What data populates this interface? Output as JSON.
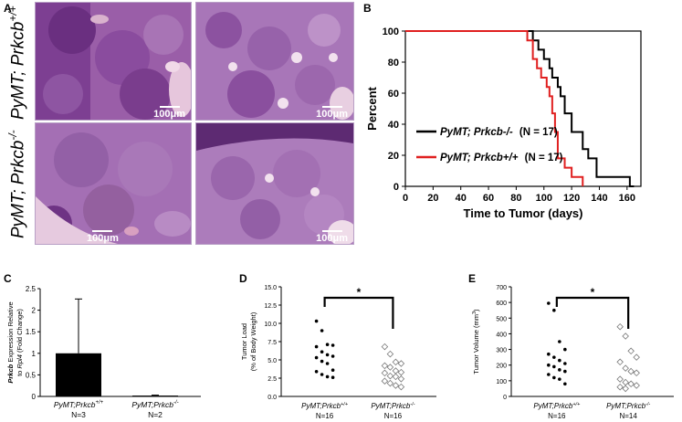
{
  "panels": {
    "A": {
      "letter": "A",
      "row1_label": "PyMT; Prkcb",
      "row1_sup": "+/+",
      "row2_label": "PyMT; Prkcb",
      "row2_sup": "-/-",
      "scale_label": "100μm"
    },
    "B": {
      "letter": "B"
    },
    "C": {
      "letter": "C"
    },
    "D": {
      "letter": "D"
    },
    "E": {
      "letter": "E"
    }
  },
  "chart_data": [
    {
      "id": "B",
      "type": "line",
      "subtype": "kaplan-meier step",
      "xlabel": "Time to Tumor (days)",
      "ylabel": "Percent",
      "xlim": [
        0,
        170
      ],
      "ylim": [
        0,
        100
      ],
      "xticks": [
        0,
        20,
        40,
        60,
        80,
        100,
        120,
        140,
        160
      ],
      "yticks": [
        0,
        20,
        40,
        60,
        80,
        100
      ],
      "legend_position": "center-right",
      "series": [
        {
          "name": "PyMT; Prkcb-/-",
          "n_label": "(N = 17)",
          "color": "#000000",
          "x": [
            0,
            88,
            92,
            96,
            100,
            104,
            106,
            110,
            112,
            115,
            120,
            125,
            128,
            132,
            138,
            162,
            165
          ],
          "y": [
            100,
            100,
            94,
            88,
            82,
            76,
            70,
            64,
            58,
            47,
            35,
            35,
            24,
            18,
            6,
            0,
            0
          ]
        },
        {
          "name": "PyMT; Prkcb+/+",
          "n_label": "(N = 17)",
          "color": "#e02020",
          "x": [
            0,
            86,
            88,
            92,
            95,
            98,
            102,
            104,
            106,
            108,
            110,
            115,
            120,
            128
          ],
          "y": [
            100,
            100,
            94,
            82,
            76,
            70,
            64,
            58,
            47,
            35,
            18,
            12,
            6,
            0
          ]
        }
      ]
    },
    {
      "id": "C",
      "type": "bar",
      "ylabel_italic": "Prkcb",
      "ylabel_line1": " Expression Relative",
      "ylabel_line2_pre": "to ",
      "ylabel_line2_italic": "Rpl4",
      "ylabel_line2_post": " (Fold Change)",
      "ylim": [
        0,
        2.5
      ],
      "yticks": [
        "0",
        "0.5",
        "1",
        "1.5",
        "2",
        "2.5"
      ],
      "categories": [
        {
          "label": "PyMT;Prkcb",
          "sup": "+/+",
          "n": "N=3"
        },
        {
          "label": "PyMT;Prkcb",
          "sup": "-/-",
          "n": "N=2"
        }
      ],
      "values": [
        1.0,
        0.02
      ],
      "errors": [
        1.26,
        0.01
      ],
      "bar_color": "#000000"
    },
    {
      "id": "D",
      "type": "scatter",
      "ylabel_line1": "Tumor Load",
      "ylabel_line2": "(% of Body Weight)",
      "ylim": [
        0,
        15
      ],
      "yticks": [
        "0.0",
        "2.5",
        "5.0",
        "7.5",
        "10.0",
        "12.5",
        "15.0"
      ],
      "significance": "*",
      "categories": [
        {
          "label": "PyMT;Prkcb",
          "sup": "+/+",
          "n": "N=16"
        },
        {
          "label": "PyMT;Prkcb",
          "sup": "-/-",
          "n": "N=16"
        }
      ],
      "groups": [
        {
          "marker": "filled-circle",
          "values": [
            10.3,
            9.0,
            7.1,
            7.0,
            6.8,
            6.1,
            5.7,
            5.5,
            5.3,
            4.8,
            4.5,
            3.6,
            3.4,
            3.0,
            2.7,
            2.6
          ]
        },
        {
          "marker": "open-diamond",
          "values": [
            6.8,
            5.8,
            4.7,
            4.5,
            4.2,
            4.0,
            3.5,
            3.3,
            3.2,
            2.8,
            2.7,
            2.4,
            2.1,
            1.8,
            1.5,
            1.3
          ]
        }
      ]
    },
    {
      "id": "E",
      "type": "scatter",
      "ylabel_line1": "Tumor Volume (mm",
      "ylabel_sup": "3",
      "ylabel_line1_post": ")",
      "ylim": [
        0,
        700
      ],
      "yticks": [
        "0",
        "100",
        "200",
        "300",
        "400",
        "500",
        "600",
        "700"
      ],
      "significance": "*",
      "categories": [
        {
          "label": "PyMT;Prkcb",
          "sup": "+/+",
          "n": "N=16"
        },
        {
          "label": "PyMT;Prkcb",
          "sup": "-/-",
          "n": "N=14"
        }
      ],
      "groups": [
        {
          "marker": "filled-circle",
          "values": [
            595,
            550,
            350,
            300,
            270,
            250,
            230,
            210,
            200,
            190,
            170,
            160,
            140,
            120,
            110,
            80
          ]
        },
        {
          "marker": "open-diamond",
          "values": [
            445,
            385,
            290,
            250,
            220,
            180,
            160,
            150,
            110,
            90,
            80,
            70,
            60,
            50
          ]
        }
      ]
    }
  ]
}
